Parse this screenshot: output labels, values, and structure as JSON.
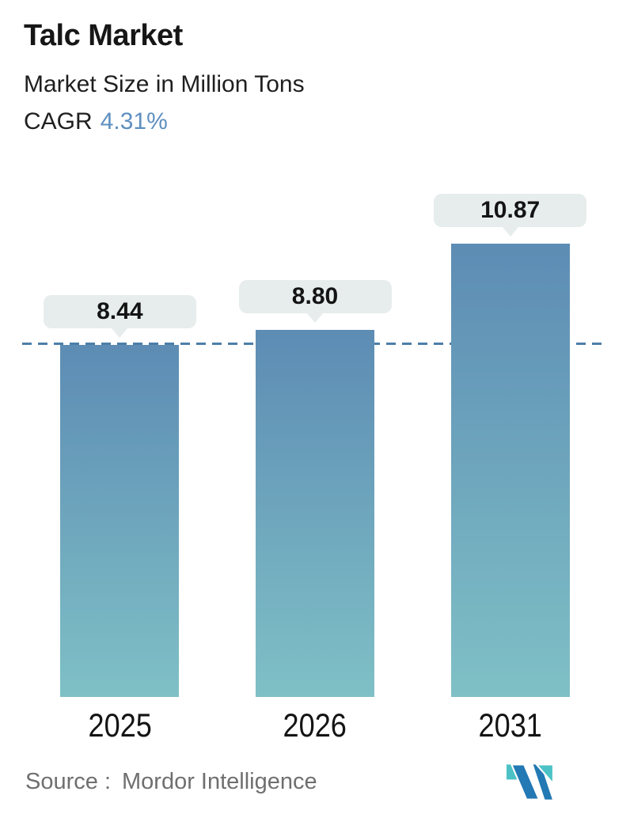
{
  "header": {
    "title": "Talc Market",
    "subtitle": "Market Size in Million Tons",
    "cagr_label": "CAGR",
    "cagr_value": "4.31%"
  },
  "chart_data": {
    "type": "bar",
    "title": "Talc Market",
    "subtitle": "Market Size in Million Tons",
    "unit": "Million Tons",
    "categories": [
      "2025",
      "2026",
      "2031"
    ],
    "values": [
      8.44,
      8.8,
      10.87
    ],
    "value_labels": [
      "8.44",
      "8.80",
      "10.87"
    ],
    "bar_color_top": "#5d8cb4",
    "bar_color_bottom": "#7fc0c6",
    "label_pill_bg": "#e7edec",
    "reference_line": {
      "value": 8.44,
      "style": "dashed",
      "color": "#4d7ea8"
    },
    "grid": false,
    "legend": false,
    "y_axis_visible": false
  },
  "footer": {
    "source_prefix": "Source :",
    "source_name": "Mordor Intelligence",
    "logo": "mordor-intelligence-logo"
  },
  "colors": {
    "accent_blue": "#5e8fbf",
    "source_gray": "#6f6f6f",
    "text_dark": "#161616",
    "logo_teal": "#4cc2c6",
    "logo_blue": "#2279b3"
  }
}
